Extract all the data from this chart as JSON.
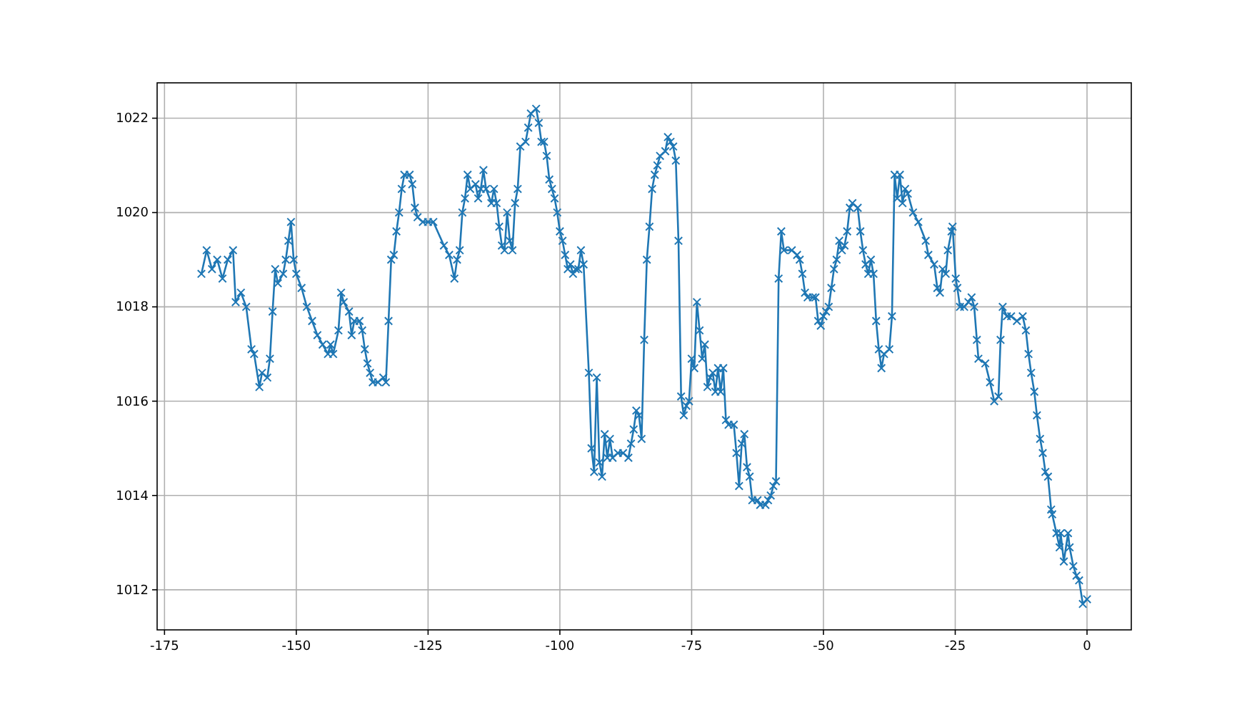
{
  "chart_data": {
    "type": "line",
    "marker": "cross",
    "grid": true,
    "xlim": [
      -176.4,
      8.4
    ],
    "ylim": [
      1011.15,
      1022.75
    ],
    "xticks": [
      -175,
      -150,
      -125,
      -100,
      -75,
      -50,
      -25,
      0
    ],
    "yticks": [
      1012,
      1014,
      1016,
      1018,
      1020,
      1022
    ],
    "x": [
      -168,
      -167,
      -166,
      -165,
      -164,
      -163,
      -162,
      -161.5,
      -160.5,
      -159.5,
      -158.5,
      -158,
      -157,
      -156.5,
      -155.5,
      -155,
      -154.5,
      -154,
      -153.5,
      -152.5,
      -152,
      -151.5,
      -151,
      -150.5,
      -150,
      -149,
      -148,
      -147,
      -146,
      -145,
      -144,
      -143.5,
      -143,
      -142,
      -141.5,
      -141,
      -140,
      -139.5,
      -139,
      -138,
      -137.5,
      -137,
      -136.5,
      -136,
      -135.5,
      -134.5,
      -133.5,
      -133,
      -132.5,
      -132,
      -131.5,
      -131,
      -130.5,
      -130,
      -129.5,
      -128.5,
      -128,
      -127.5,
      -127,
      -126,
      -125,
      -124,
      -122,
      -121,
      -120,
      -119.5,
      -119,
      -118.5,
      -118,
      -117.5,
      -117,
      -116,
      -115.5,
      -115,
      -114.5,
      -114,
      -113,
      -112.5,
      -112,
      -111.5,
      -111,
      -110.5,
      -110,
      -109.5,
      -109,
      -108.5,
      -108,
      -107.5,
      -106.5,
      -106,
      -105.5,
      -104.5,
      -104,
      -103.5,
      -103,
      -102.5,
      -102,
      -101.5,
      -101,
      -100.5,
      -100,
      -99.5,
      -99,
      -98.5,
      -98,
      -97.5,
      -97,
      -96.5,
      -96,
      -95.5,
      -94.5,
      -94,
      -93.5,
      -93,
      -92.5,
      -92,
      -91.5,
      -91,
      -90.5,
      -90,
      -89,
      -88,
      -87,
      -86.5,
      -86,
      -85.5,
      -85,
      -84.5,
      -84,
      -83.5,
      -83,
      -82.5,
      -82,
      -81.5,
      -81,
      -80,
      -79.5,
      -79,
      -78.5,
      -78,
      -77.5,
      -77,
      -76.5,
      -76,
      -75.5,
      -75,
      -74.5,
      -74,
      -73.5,
      -73,
      -72.5,
      -72,
      -71.5,
      -71,
      -70.5,
      -70,
      -69.5,
      -69,
      -68.5,
      -68,
      -67,
      -66.5,
      -66,
      -65.5,
      -65,
      -64.5,
      -64,
      -63.5,
      -62.5,
      -62,
      -61,
      -60.5,
      -60,
      -59.5,
      -59,
      -58.5,
      -58,
      -57.5,
      -56,
      -55,
      -54.5,
      -54,
      -53.5,
      -53,
      -52,
      -51.5,
      -51,
      -50.5,
      -50,
      -49.5,
      -49,
      -48.5,
      -48,
      -47.5,
      -47,
      -46.5,
      -46,
      -45.5,
      -45,
      -44.5,
      -43.5,
      -43,
      -42.5,
      -42,
      -41.5,
      -41,
      -40.5,
      -40,
      -39.5,
      -39,
      -38.5,
      -37.5,
      -37,
      -36.5,
      -36,
      -35.5,
      -35,
      -34.5,
      -34,
      -33,
      -32,
      -30.6,
      -30.1,
      -29,
      -28.4,
      -27.9,
      -27.4,
      -26.8,
      -26.4,
      -25.7,
      -25.5,
      -24.9,
      -24.6,
      -24.1,
      -23.3,
      -22.5,
      -21.9,
      -21.4,
      -20.9,
      -20.6,
      -19.3,
      -18.4,
      -17.6,
      -16.8,
      -16.4,
      -16,
      -15.2,
      -14.4,
      -13.3,
      -12.2,
      -11.6,
      -11.1,
      -10.6,
      -10,
      -9.5,
      -8.9,
      -8.4,
      -7.9,
      -7.4,
      -6.8,
      -6.6,
      -5.8,
      -5.2,
      -5,
      -4.4,
      -3.6,
      -3.3,
      -2.6,
      -2,
      -1.5,
      -0.8,
      0
    ],
    "series": [
      {
        "color": "#1f77b4",
        "values": [
          1018.7,
          1019.2,
          1018.8,
          1019,
          1018.6,
          1019,
          1019.2,
          1018.1,
          1018.3,
          1018,
          1017.1,
          1017,
          1016.3,
          1016.6,
          1016.5,
          1016.9,
          1017.9,
          1018.8,
          1018.5,
          1018.7,
          1019,
          1019.4,
          1019.8,
          1019,
          1018.7,
          1018.4,
          1018,
          1017.7,
          1017.4,
          1017.2,
          1017,
          1017.2,
          1017,
          1017.5,
          1018.3,
          1018.1,
          1017.9,
          1017.4,
          1017.7,
          1017.7,
          1017.5,
          1017.1,
          1016.8,
          1016.6,
          1016.4,
          1016.4,
          1016.5,
          1016.4,
          1017.7,
          1019,
          1019.1,
          1019.6,
          1020,
          1020.5,
          1020.8,
          1020.8,
          1020.6,
          1020.1,
          1019.9,
          1019.8,
          1019.8,
          1019.8,
          1019.3,
          1019.1,
          1018.6,
          1019,
          1019.2,
          1020,
          1020.3,
          1020.8,
          1020.5,
          1020.6,
          1020.3,
          1020.5,
          1020.9,
          1020.5,
          1020.2,
          1020.5,
          1020.2,
          1019.7,
          1019.3,
          1019.2,
          1020,
          1019.4,
          1019.2,
          1020.2,
          1020.5,
          1021.4,
          1021.5,
          1021.8,
          1022.1,
          1022.2,
          1021.9,
          1021.5,
          1021.5,
          1021.2,
          1020.7,
          1020.5,
          1020.3,
          1020,
          1019.6,
          1019.4,
          1019.1,
          1018.8,
          1018.9,
          1018.7,
          1018.8,
          1018.8,
          1019.2,
          1018.9,
          1016.6,
          1015,
          1014.5,
          1016.5,
          1014.7,
          1014.4,
          1015.3,
          1014.8,
          1015.2,
          1014.8,
          1014.9,
          1014.9,
          1014.8,
          1015.1,
          1015.4,
          1015.8,
          1015.7,
          1015.2,
          1017.3,
          1019,
          1019.7,
          1020.5,
          1020.8,
          1021,
          1021.2,
          1021.3,
          1021.6,
          1021.5,
          1021.4,
          1021.1,
          1019.4,
          1016.1,
          1015.7,
          1015.9,
          1016,
          1016.9,
          1016.7,
          1018.1,
          1017.5,
          1016.9,
          1017.2,
          1016.3,
          1016.5,
          1016.6,
          1016.2,
          1016.7,
          1016.2,
          1016.7,
          1015.6,
          1015.5,
          1015.5,
          1014.9,
          1014.2,
          1015.1,
          1015.3,
          1014.6,
          1014.4,
          1013.9,
          1013.9,
          1013.8,
          1013.8,
          1013.9,
          1014,
          1014.2,
          1014.3,
          1018.6,
          1019.6,
          1019.2,
          1019.2,
          1019.1,
          1019,
          1018.7,
          1018.3,
          1018.2,
          1018.2,
          1018.2,
          1017.7,
          1017.6,
          1017.8,
          1017.9,
          1018,
          1018.4,
          1018.8,
          1019,
          1019.4,
          1019.2,
          1019.3,
          1019.6,
          1020.1,
          1020.2,
          1020.1,
          1019.6,
          1019.2,
          1018.9,
          1018.7,
          1019,
          1018.7,
          1017.7,
          1017.1,
          1016.7,
          1017,
          1017.1,
          1017.8,
          1020.8,
          1020.3,
          1020.8,
          1020.2,
          1020.5,
          1020.4,
          1020,
          1019.8,
          1019.4,
          1019.1,
          1018.9,
          1018.4,
          1018.3,
          1018.8,
          1018.7,
          1019.2,
          1019.6,
          1019.7,
          1018.6,
          1018.4,
          1018,
          1018,
          1018.1,
          1018.2,
          1018,
          1017.3,
          1016.9,
          1016.8,
          1016.4,
          1016,
          1016.1,
          1017.3,
          1018,
          1017.8,
          1017.8,
          1017.7,
          1017.8,
          1017.5,
          1017,
          1016.6,
          1016.2,
          1015.7,
          1015.2,
          1014.9,
          1014.5,
          1014.4,
          1013.7,
          1013.6,
          1013.2,
          1012.9,
          1013.2,
          1012.6,
          1013.2,
          1012.9,
          1012.5,
          1012.3,
          1012.2,
          1011.7,
          1011.8
        ]
      }
    ]
  }
}
